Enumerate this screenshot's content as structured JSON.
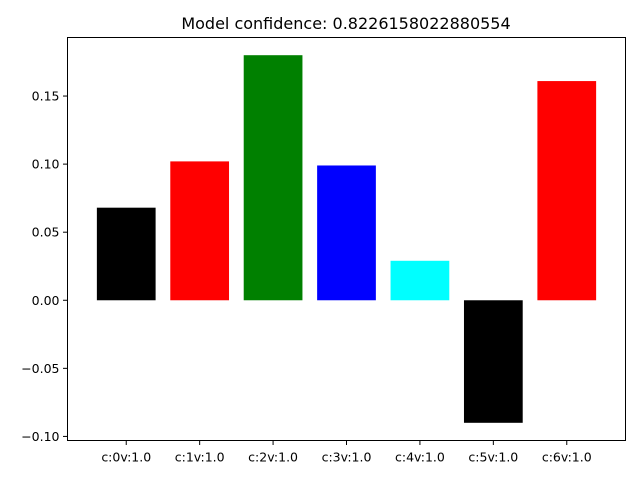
{
  "chart_data": {
    "type": "bar",
    "title": "Model confidence: 0.8226158022880554",
    "xlabel": "",
    "ylabel": "",
    "categories": [
      "c:0v:1.0",
      "c:1v:1.0",
      "c:2v:1.0",
      "c:3v:1.0",
      "c:4v:1.0",
      "c:5v:1.0",
      "c:6v:1.0"
    ],
    "values": [
      0.068,
      0.102,
      0.18,
      0.099,
      0.029,
      -0.09,
      0.161
    ],
    "colors": [
      "#000000",
      "#ff0000",
      "#008000",
      "#0000ff",
      "#00ffff",
      "#000000",
      "#ff0000"
    ],
    "ylim": [
      -0.103,
      0.193
    ],
    "yticks": [
      -0.1,
      -0.05,
      0.0,
      0.05,
      0.1,
      0.15
    ],
    "ytick_labels": [
      "−0.10",
      "−0.05",
      "0.00",
      "0.05",
      "0.10",
      "0.15"
    ],
    "grid": false,
    "legend": "none"
  }
}
